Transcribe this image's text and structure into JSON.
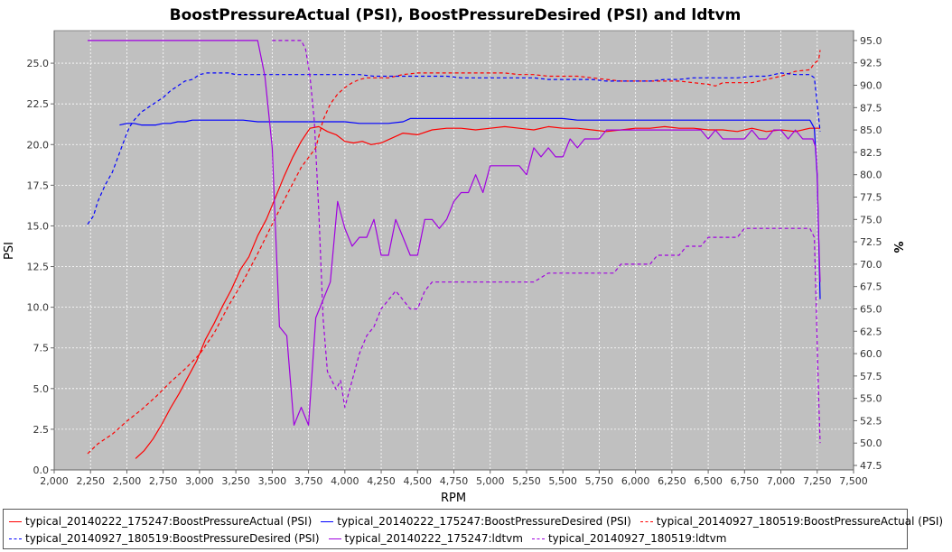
{
  "chart_data": {
    "type": "line",
    "title": "BoostPressureActual (PSI), BoostPressureDesired (PSI) and ldtvm",
    "xlabel": "RPM",
    "ylabel": "PSI",
    "y2label": "%",
    "xlim": [
      2000,
      7500
    ],
    "ylim": [
      0,
      27
    ],
    "y2lim": [
      47,
      96.1
    ],
    "xticks": [
      "2,000",
      "2,250",
      "2,500",
      "2,750",
      "3,000",
      "3,250",
      "3,500",
      "3,750",
      "4,000",
      "4,250",
      "4,500",
      "4,750",
      "5,000",
      "5,250",
      "5,500",
      "5,750",
      "6,000",
      "6,250",
      "6,500",
      "6,750",
      "7,000",
      "7,250",
      "7,500"
    ],
    "yticks": [
      "0.0",
      "2.5",
      "5.0",
      "7.5",
      "10.0",
      "12.5",
      "15.0",
      "17.5",
      "20.0",
      "22.5",
      "25.0"
    ],
    "y2ticks": [
      "47.5",
      "50.0",
      "52.5",
      "55.0",
      "57.5",
      "60.0",
      "62.5",
      "65.0",
      "67.5",
      "70.0",
      "72.5",
      "75.0",
      "77.5",
      "80.0",
      "82.5",
      "85.0",
      "87.5",
      "90.0",
      "92.5",
      "95.0"
    ],
    "grid": true,
    "legend_position": "bottom",
    "series": [
      {
        "name": "typical_20140222_175247:BoostPressureActual (PSI)",
        "color": "#ff0000",
        "dash": "solid",
        "axis": "left",
        "x": [
          2560,
          2620,
          2680,
          2740,
          2800,
          2860,
          2920,
          2980,
          3040,
          3100,
          3160,
          3220,
          3280,
          3340,
          3400,
          3460,
          3520,
          3580,
          3640,
          3700,
          3760,
          3820,
          3880,
          3940,
          4000,
          4060,
          4120,
          4180,
          4250,
          4300,
          4400,
          4500,
          4600,
          4700,
          4800,
          4900,
          5000,
          5100,
          5200,
          5300,
          5400,
          5500,
          5600,
          5700,
          5800,
          5900,
          6000,
          6100,
          6200,
          6300,
          6400,
          6500,
          6600,
          6700,
          6800,
          6900,
          7000,
          7100,
          7200,
          7270
        ],
        "y": [
          0.7,
          1.2,
          1.9,
          2.8,
          3.8,
          4.7,
          5.7,
          6.7,
          8.0,
          9.0,
          10.1,
          11.1,
          12.3,
          13.1,
          14.4,
          15.4,
          16.7,
          18.0,
          19.2,
          20.2,
          21.0,
          21.1,
          20.8,
          20.6,
          20.2,
          20.1,
          20.2,
          20.0,
          20.1,
          20.3,
          20.7,
          20.6,
          20.9,
          21.0,
          21.0,
          20.9,
          21.0,
          21.1,
          21.0,
          20.9,
          21.1,
          21.0,
          21.0,
          20.9,
          20.8,
          20.9,
          21.0,
          21.0,
          21.1,
          21.0,
          21.0,
          20.9,
          20.9,
          20.8,
          21.0,
          20.8,
          20.9,
          20.8,
          21.0,
          21.0
        ]
      },
      {
        "name": "typical_20140222_175247:BoostPressureDesired (PSI)",
        "color": "#0000ff",
        "dash": "solid",
        "axis": "left",
        "x": [
          2450,
          2500,
          2550,
          2600,
          2650,
          2700,
          2750,
          2800,
          2850,
          2900,
          2950,
          3000,
          3050,
          3100,
          3200,
          3300,
          3400,
          3500,
          3600,
          3700,
          3800,
          3900,
          4000,
          4100,
          4200,
          4300,
          4400,
          4450,
          4500,
          4600,
          4700,
          4800,
          4900,
          5000,
          5100,
          5200,
          5300,
          5400,
          5500,
          5600,
          5700,
          5800,
          5900,
          6000,
          6100,
          6200,
          6300,
          6400,
          6500,
          6600,
          6700,
          6800,
          6900,
          7000,
          7100,
          7150,
          7200,
          7230,
          7250,
          7270
        ],
        "y": [
          21.2,
          21.3,
          21.3,
          21.2,
          21.2,
          21.2,
          21.3,
          21.3,
          21.4,
          21.4,
          21.5,
          21.5,
          21.5,
          21.5,
          21.5,
          21.5,
          21.4,
          21.4,
          21.4,
          21.4,
          21.4,
          21.4,
          21.4,
          21.3,
          21.3,
          21.3,
          21.4,
          21.6,
          21.6,
          21.6,
          21.6,
          21.6,
          21.6,
          21.6,
          21.6,
          21.6,
          21.6,
          21.6,
          21.6,
          21.5,
          21.5,
          21.5,
          21.5,
          21.5,
          21.5,
          21.5,
          21.5,
          21.5,
          21.5,
          21.5,
          21.5,
          21.5,
          21.5,
          21.5,
          21.5,
          21.5,
          21.5,
          21.0,
          18.0,
          10.5
        ]
      },
      {
        "name": "typical_20140927_180519:BoostPressureActual (PSI)",
        "color": "#ff0000",
        "dash": "dashed",
        "axis": "left",
        "x": [
          2230,
          2300,
          2400,
          2500,
          2600,
          2700,
          2800,
          2900,
          3000,
          3100,
          3200,
          3300,
          3400,
          3500,
          3600,
          3700,
          3800,
          3850,
          3900,
          3950,
          4000,
          4050,
          4100,
          4150,
          4200,
          4300,
          4350,
          4400,
          4500,
          4600,
          4700,
          4800,
          4900,
          5000,
          5100,
          5200,
          5300,
          5400,
          5500,
          5600,
          5700,
          5800,
          5900,
          6000,
          6100,
          6200,
          6300,
          6400,
          6500,
          6550,
          6600,
          6700,
          6800,
          6900,
          7000,
          7100,
          7200,
          7230,
          7260,
          7270
        ],
        "y": [
          1.0,
          1.6,
          2.2,
          3.0,
          3.7,
          4.5,
          5.4,
          6.2,
          7.1,
          8.4,
          10.1,
          11.6,
          13.3,
          15.1,
          16.9,
          18.6,
          19.8,
          21.5,
          22.5,
          23.1,
          23.5,
          23.8,
          24.0,
          24.1,
          24.1,
          24.1,
          24.2,
          24.3,
          24.4,
          24.4,
          24.4,
          24.4,
          24.4,
          24.4,
          24.4,
          24.3,
          24.3,
          24.2,
          24.2,
          24.2,
          24.1,
          24.0,
          23.9,
          23.9,
          23.9,
          23.9,
          23.9,
          23.8,
          23.7,
          23.6,
          23.8,
          23.8,
          23.8,
          24.0,
          24.2,
          24.5,
          24.6,
          25.0,
          25.2,
          25.8
        ]
      },
      {
        "name": "typical_20140927_180519:BoostPressureDesired (PSI)",
        "color": "#0000ff",
        "dash": "dashed",
        "axis": "left",
        "x": [
          2230,
          2270,
          2300,
          2350,
          2400,
          2450,
          2500,
          2520,
          2550,
          2600,
          2650,
          2700,
          2750,
          2800,
          2850,
          2900,
          2950,
          3000,
          3050,
          3100,
          3150,
          3200,
          3250,
          3300,
          3400,
          3450,
          3500,
          3600,
          3700,
          3800,
          3900,
          4000,
          4100,
          4200,
          4300,
          4400,
          4500,
          4600,
          4700,
          4800,
          4900,
          5000,
          5100,
          5200,
          5300,
          5400,
          5500,
          5600,
          5700,
          5800,
          5900,
          6000,
          6100,
          6200,
          6300,
          6400,
          6500,
          6600,
          6700,
          6800,
          6900,
          7000,
          7100,
          7200,
          7230,
          7250,
          7270
        ],
        "y": [
          15.1,
          15.6,
          16.5,
          17.5,
          18.3,
          19.5,
          20.7,
          21.1,
          21.5,
          22.0,
          22.3,
          22.6,
          22.9,
          23.3,
          23.6,
          23.9,
          24.0,
          24.3,
          24.4,
          24.4,
          24.4,
          24.4,
          24.3,
          24.3,
          24.3,
          24.3,
          24.3,
          24.3,
          24.3,
          24.3,
          24.3,
          24.3,
          24.3,
          24.2,
          24.2,
          24.2,
          24.2,
          24.2,
          24.2,
          24.1,
          24.1,
          24.1,
          24.1,
          24.1,
          24.1,
          24.0,
          24.0,
          24.0,
          24.0,
          23.9,
          23.9,
          23.9,
          23.9,
          24.0,
          24.0,
          24.1,
          24.1,
          24.1,
          24.1,
          24.2,
          24.2,
          24.4,
          24.3,
          24.3,
          24.1,
          22.5,
          20.8
        ]
      },
      {
        "name": "typical_20140222_175247:ldtvm",
        "color": "#a000e0",
        "dash": "solid",
        "axis": "right",
        "x": [
          2230,
          2300,
          2400,
          2500,
          2600,
          2700,
          2800,
          2900,
          3000,
          3100,
          3200,
          3300,
          3400,
          3450,
          3500,
          3550,
          3600,
          3650,
          3700,
          3750,
          3800,
          3850,
          3900,
          3950,
          4000,
          4050,
          4100,
          4150,
          4200,
          4250,
          4300,
          4350,
          4400,
          4450,
          4500,
          4550,
          4600,
          4650,
          4700,
          4750,
          4800,
          4850,
          4900,
          4950,
          5000,
          5050,
          5100,
          5150,
          5200,
          5250,
          5300,
          5350,
          5400,
          5450,
          5500,
          5550,
          5600,
          5650,
          5700,
          5750,
          5800,
          5850,
          5900,
          5950,
          6000,
          6050,
          6100,
          6150,
          6200,
          6250,
          6300,
          6350,
          6400,
          6450,
          6500,
          6550,
          6600,
          6650,
          6700,
          6750,
          6800,
          6850,
          6900,
          6950,
          7000,
          7050,
          7100,
          7150,
          7200,
          7220,
          7240,
          7250,
          7260,
          7270
        ],
        "y": [
          95,
          95,
          95,
          95,
          95,
          95,
          95,
          95,
          95,
          95,
          95,
          95,
          95,
          91,
          83,
          63,
          62,
          52,
          54,
          52,
          64,
          66,
          68,
          77,
          74,
          72,
          73,
          73,
          75,
          71,
          71,
          75,
          73,
          71,
          71,
          75,
          75,
          74,
          75,
          77,
          78,
          78,
          80,
          78,
          81,
          81,
          81,
          81,
          81,
          80,
          83,
          82,
          83,
          82,
          82,
          84,
          83,
          84,
          84,
          84,
          85,
          85,
          85,
          85,
          85,
          85,
          85,
          85,
          85,
          85,
          85,
          85,
          85,
          85,
          84,
          85,
          84,
          84,
          84,
          84,
          85,
          84,
          84,
          85,
          85,
          84,
          85,
          84,
          84,
          84,
          83,
          80,
          73,
          68
        ]
      },
      {
        "name": "typical_20140927_180519:ldtvm",
        "color": "#a000e0",
        "dash": "dashed",
        "axis": "right",
        "x": [
          3500,
          3550,
          3600,
          3650,
          3700,
          3730,
          3760,
          3790,
          3820,
          3850,
          3880,
          3910,
          3940,
          3970,
          4000,
          4050,
          4100,
          4150,
          4200,
          4250,
          4300,
          4350,
          4400,
          4450,
          4500,
          4550,
          4600,
          4700,
          4800,
          4900,
          5000,
          5100,
          5200,
          5300,
          5400,
          5500,
          5600,
          5700,
          5750,
          5800,
          5850,
          5900,
          5950,
          6000,
          6050,
          6100,
          6150,
          6200,
          6250,
          6300,
          6350,
          6400,
          6450,
          6500,
          6550,
          6600,
          6650,
          6700,
          6750,
          6800,
          6850,
          6900,
          6950,
          7000,
          7050,
          7100,
          7150,
          7200,
          7230,
          7260,
          7270
        ],
        "y": [
          95,
          95,
          95,
          95,
          95,
          94,
          91,
          86,
          76,
          64,
          58,
          57,
          56,
          57,
          54,
          57,
          60,
          62,
          63,
          65,
          66,
          67,
          66,
          65,
          65,
          67,
          68,
          68,
          68,
          68,
          68,
          68,
          68,
          68,
          69,
          69,
          69,
          69,
          69,
          69,
          69,
          70,
          70,
          70,
          70,
          70,
          71,
          71,
          71,
          71,
          72,
          72,
          72,
          73,
          73,
          73,
          73,
          73,
          74,
          74,
          74,
          74,
          74,
          74,
          74,
          74,
          74,
          74,
          73,
          55,
          50
        ]
      }
    ]
  }
}
